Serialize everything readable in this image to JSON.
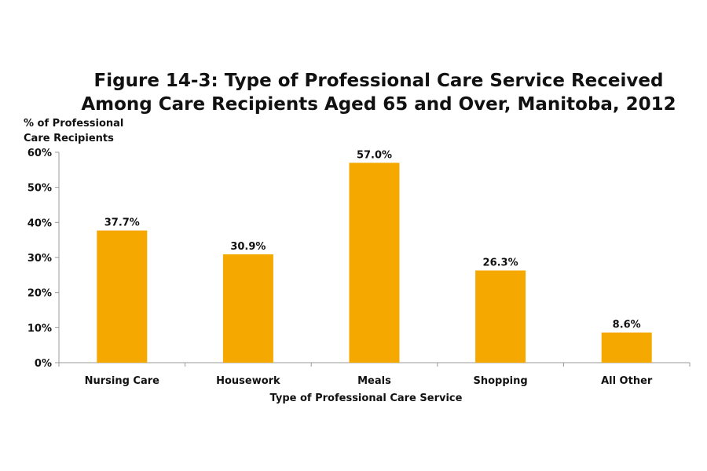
{
  "chart_data": {
    "type": "bar",
    "title": "Figure 14-3: Type of Professional Care Service Received",
    "subtitle": "Among Care Recipients Aged 65 and Over, Manitoba, 2012",
    "ylabel_line1": "% of Professional",
    "ylabel_line2": "Care Recipients",
    "xlabel": "Type of Professional Care Service",
    "categories": [
      "Nursing Care",
      "Housework",
      "Meals",
      "Shopping",
      "All Other"
    ],
    "values": [
      37.7,
      30.9,
      57.0,
      26.3,
      8.6
    ],
    "data_labels": [
      "37.7%",
      "30.9%",
      "57.0%",
      "26.3%",
      "8.6%"
    ],
    "yticks": [
      0,
      10,
      20,
      30,
      40,
      50,
      60
    ],
    "ytick_labels": [
      "0%",
      "10%",
      "20%",
      "30%",
      "40%",
      "50%",
      "60%"
    ],
    "ylim": [
      0,
      60
    ],
    "grid": false,
    "legend": "none",
    "bar_color": "#F5A800"
  }
}
